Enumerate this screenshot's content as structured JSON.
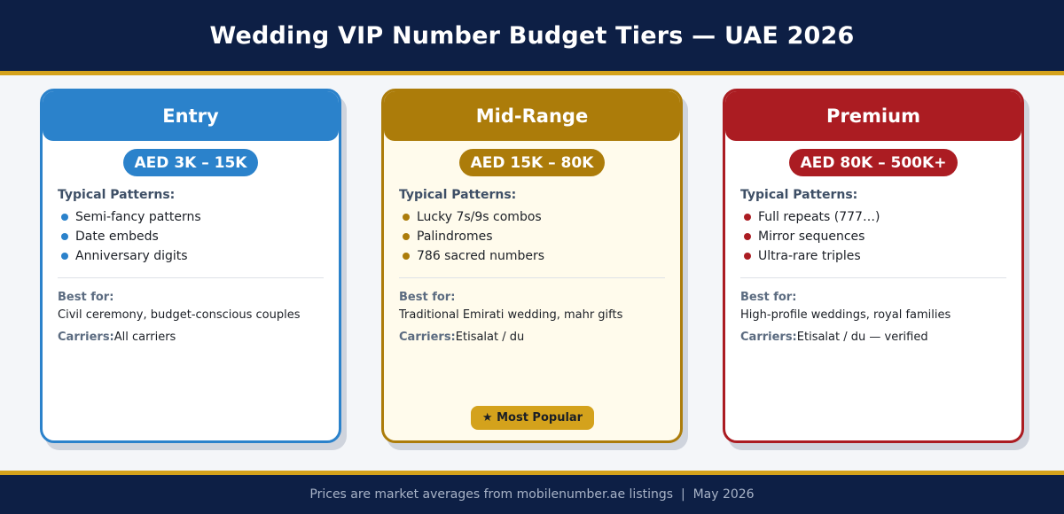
{
  "header": {
    "title": "Wedding VIP Number Budget Tiers — UAE 2026"
  },
  "footer": {
    "text": "Prices are market averages from mobilenumber.ae listings  |  May 2026"
  },
  "labels": {
    "typical_patterns": "Typical Patterns:",
    "best_for": "Best for:",
    "carriers": "Carriers:"
  },
  "tiers": [
    {
      "name": "Entry",
      "price": "AED 3K – 15K",
      "accent": "#2b82cb",
      "patterns": [
        "Semi-fancy patterns",
        "Date embeds",
        "Anniversary digits"
      ],
      "best_for": "Civil ceremony, budget-conscious couples",
      "carriers": "All carriers"
    },
    {
      "name": "Mid-Range",
      "price": "AED 15K – 80K",
      "accent": "#ac7c0a",
      "patterns": [
        "Lucky 7s/9s combos",
        "Palindromes",
        "786 sacred numbers"
      ],
      "best_for": "Traditional Emirati wedding, mahr gifts",
      "carriers": "Etisalat / du",
      "badge": "★ Most Popular"
    },
    {
      "name": "Premium",
      "price": "AED 80K – 500K+",
      "accent": "#ab1c22",
      "patterns": [
        "Full repeats (777…)",
        "Mirror sequences",
        "Ultra-rare triples"
      ],
      "best_for": "High-profile weddings, royal families",
      "carriers": "Etisalat / du — verified"
    }
  ]
}
